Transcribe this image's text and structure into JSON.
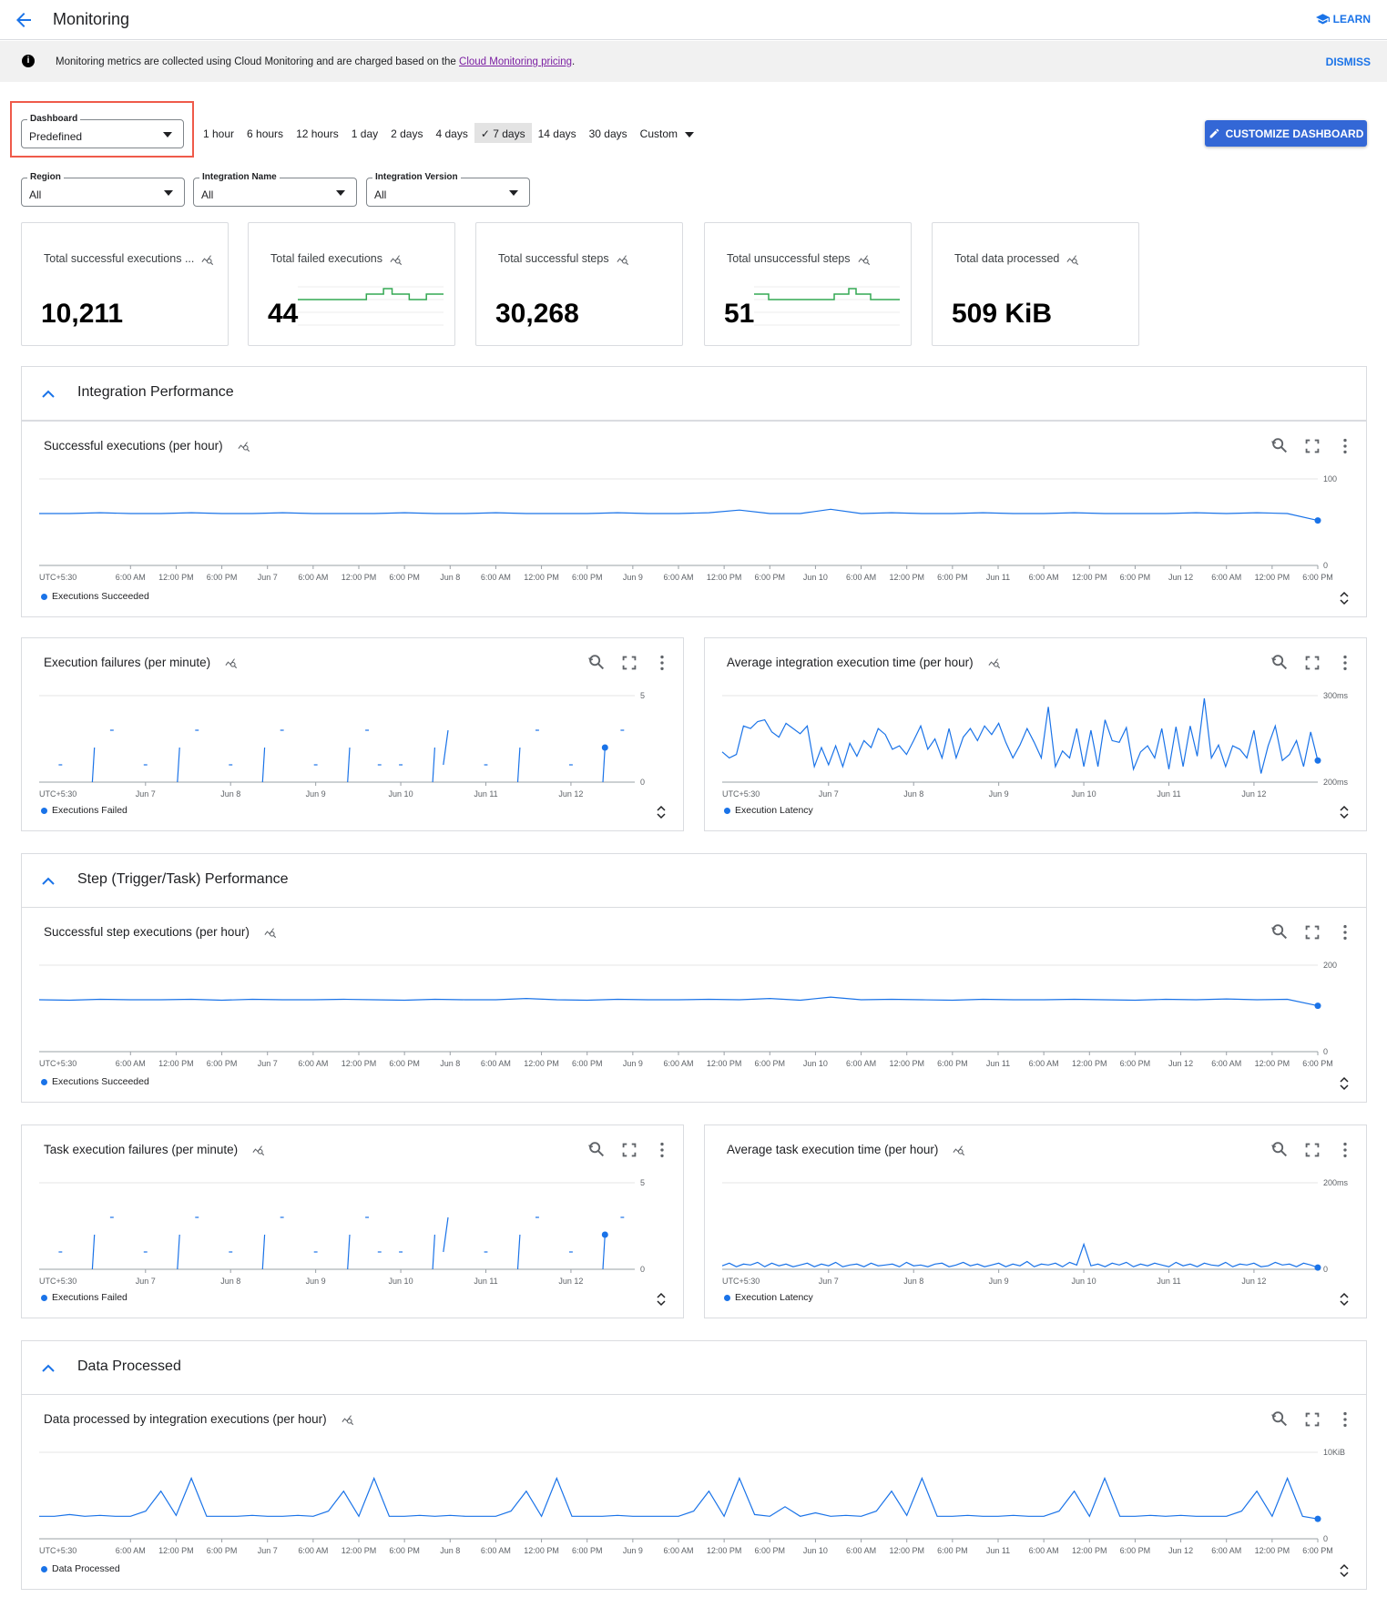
{
  "header": {
    "title": "Monitoring",
    "learn_label": "LEARN"
  },
  "banner": {
    "text": "Monitoring metrics are collected using Cloud Monitoring and are charged based on the ",
    "link": "Cloud Monitoring pricing",
    "suffix": ".",
    "dismiss": "DISMISS"
  },
  "dashboard_select": {
    "label": "Dashboard",
    "value": "Predefined"
  },
  "time_ranges": [
    "1 hour",
    "6 hours",
    "12 hours",
    "1 day",
    "2 days",
    "4 days",
    "7 days",
    "14 days",
    "30 days",
    "Custom"
  ],
  "selected_time_range": "7 days",
  "customize_label": "CUSTOMIZE DASHBOARD",
  "filters": [
    {
      "label": "Region",
      "value": "All"
    },
    {
      "label": "Integration Name",
      "value": "All"
    },
    {
      "label": "Integration Version",
      "value": "All"
    }
  ],
  "kpis": [
    {
      "title": "Total successful executions ...",
      "value": "10,211"
    },
    {
      "title": "Total failed executions",
      "value": "44",
      "spark": [
        0,
        0,
        0,
        0,
        0,
        0,
        0,
        0,
        1,
        1,
        2,
        1,
        1,
        0,
        0,
        1,
        1
      ]
    },
    {
      "title": "Total successful steps",
      "value": "30,268"
    },
    {
      "title": "Total unsuccessful steps",
      "value": "51",
      "spark": [
        1,
        1,
        0,
        0,
        0,
        0,
        0,
        0,
        0,
        0,
        0,
        1,
        1,
        2,
        1,
        1,
        0,
        0,
        0,
        0
      ]
    },
    {
      "title": "Total data processed",
      "value": "509 KiB"
    }
  ],
  "spark_color": "#34a853",
  "accent": "#1a73e8",
  "sections": [
    {
      "title": "Integration Performance"
    },
    {
      "title": "Step (Trigger/Task) Performance"
    },
    {
      "title": "Data Processed"
    }
  ],
  "chart_data": [
    {
      "id": "c1",
      "type": "line",
      "title": "Successful executions (per hour)",
      "legend": "Executions Succeeded",
      "ylim": [
        0,
        100
      ],
      "yticks": [
        "0",
        "100"
      ],
      "x_range": [
        "Jun 5 6:00 PM",
        "Jun 12 6:00 PM"
      ],
      "timezone": "UTC+5:30",
      "xticks": [
        "6:00 AM",
        "12:00 PM",
        "6:00 PM",
        "Jun 7",
        "6:00 AM",
        "12:00 PM",
        "6:00 PM",
        "Jun 8",
        "6:00 AM",
        "12:00 PM",
        "6:00 PM",
        "Jun 9",
        "6:00 AM",
        "12:00 PM",
        "6:00 PM",
        "Jun 10",
        "6:00 AM",
        "12:00 PM",
        "6:00 PM",
        "Jun 11",
        "6:00 AM",
        "12:00 PM",
        "6:00 PM",
        "Jun 12",
        "6:00 AM",
        "12:00 PM",
        "6:00 PM"
      ],
      "values": [
        60,
        60,
        61,
        60,
        60,
        61,
        60,
        60,
        61,
        60,
        60,
        60,
        61,
        60,
        60,
        61,
        60,
        60,
        60,
        61,
        60,
        60,
        61,
        64,
        60,
        60,
        65,
        60,
        61,
        60,
        60,
        61,
        60,
        60,
        61,
        60,
        60,
        60,
        61,
        60,
        61,
        60,
        52
      ]
    },
    {
      "id": "c2",
      "type": "line",
      "title": "Execution failures (per minute)",
      "legend": "Executions Failed",
      "ylim": [
        0,
        5
      ],
      "yticks": [
        "0",
        "5"
      ],
      "x_range": [
        "Jun 5 6:00 PM",
        "Jun 12 6:00 PM"
      ],
      "timezone": "UTC+5:30",
      "xticks": [
        "Jun 7",
        "Jun 8",
        "Jun 9",
        "Jun 10",
        "Jun 11",
        "Jun 12"
      ],
      "segments": [
        [
          [
            "Jun 5 23:30",
            1
          ],
          [
            "Jun 6 00:30",
            1
          ]
        ],
        [
          [
            "Jun 6 09:00",
            0
          ],
          [
            "Jun 6 09:36",
            2
          ]
        ],
        [
          [
            "Jun 6 14:00",
            3
          ],
          [
            "Jun 6 15:00",
            3
          ]
        ],
        [
          [
            "Jun 6 23:30",
            1
          ],
          [
            "Jun 7 00:30",
            1
          ]
        ],
        [
          [
            "Jun 7 09:00",
            0
          ],
          [
            "Jun 7 09:36",
            2
          ]
        ],
        [
          [
            "Jun 7 14:00",
            3
          ],
          [
            "Jun 7 15:00",
            3
          ]
        ],
        [
          [
            "Jun 7 23:30",
            1
          ],
          [
            "Jun 8 00:30",
            1
          ]
        ],
        [
          [
            "Jun 8 09:00",
            0
          ],
          [
            "Jun 8 09:36",
            2
          ]
        ],
        [
          [
            "Jun 8 14:00",
            3
          ],
          [
            "Jun 8 15:00",
            3
          ]
        ],
        [
          [
            "Jun 8 23:30",
            1
          ],
          [
            "Jun 9 00:30",
            1
          ]
        ],
        [
          [
            "Jun 9 09:00",
            0
          ],
          [
            "Jun 9 09:36",
            2
          ]
        ],
        [
          [
            "Jun 9 14:00",
            3
          ],
          [
            "Jun 9 15:00",
            3
          ]
        ],
        [
          [
            "Jun 9 17:30",
            1
          ],
          [
            "Jun 9 18:30",
            1
          ]
        ],
        [
          [
            "Jun 9 23:30",
            1
          ],
          [
            "Jun 10 00:30",
            1
          ]
        ],
        [
          [
            "Jun 10 09:00",
            0
          ],
          [
            "Jun 10 09:36",
            2
          ]
        ],
        [
          [
            "Jun 10 12:00",
            1
          ],
          [
            "Jun 10 13:20",
            3
          ]
        ],
        [
          [
            "Jun 10 23:30",
            1
          ],
          [
            "Jun 11 00:30",
            1
          ]
        ],
        [
          [
            "Jun 11 09:00",
            0
          ],
          [
            "Jun 11 09:36",
            2
          ]
        ],
        [
          [
            "Jun 11 14:00",
            3
          ],
          [
            "Jun 11 15:00",
            3
          ]
        ],
        [
          [
            "Jun 11 23:30",
            1
          ],
          [
            "Jun 12 00:30",
            1
          ]
        ],
        [
          [
            "Jun 12 09:00",
            0
          ],
          [
            "Jun 12 09:36",
            2
          ]
        ],
        [
          [
            "Jun 12 14:00",
            3
          ],
          [
            "Jun 12 15:00",
            3
          ]
        ]
      ],
      "last_point": [
        "Jun 12 09:36",
        2
      ]
    },
    {
      "id": "c3",
      "type": "line",
      "title": "Average integration execution time (per hour)",
      "legend": "Execution Latency",
      "ylim": [
        200,
        300
      ],
      "yticks": [
        "200ms",
        "300ms"
      ],
      "x_range": [
        "Jun 5 6:00 PM",
        "Jun 12 6:00 PM"
      ],
      "timezone": "UTC+5:30",
      "xticks": [
        "Jun 7",
        "Jun 8",
        "Jun 9",
        "Jun 10",
        "Jun 11",
        "Jun 12"
      ],
      "values": [
        235,
        228,
        232,
        265,
        262,
        270,
        272,
        258,
        252,
        268,
        262,
        256,
        265,
        218,
        240,
        220,
        242,
        218,
        245,
        230,
        248,
        240,
        262,
        255,
        238,
        242,
        232,
        248,
        265,
        238,
        250,
        228,
        262,
        228,
        252,
        262,
        248,
        265,
        255,
        268,
        246,
        228,
        243,
        262,
        246,
        228,
        287,
        218,
        236,
        228,
        262,
        218,
        260,
        218,
        272,
        248,
        246,
        263,
        215,
        235,
        242,
        228,
        262,
        215,
        264,
        218,
        265,
        230,
        297,
        228,
        243,
        218,
        242,
        238,
        228,
        260,
        210,
        242,
        265,
        225,
        232,
        248,
        218,
        258,
        225
      ]
    },
    {
      "id": "c4",
      "type": "line",
      "title": "Successful step executions (per hour)",
      "legend": "Executions Succeeded",
      "ylim": [
        0,
        200
      ],
      "yticks": [
        "0",
        "200"
      ],
      "x_range": [
        "Jun 5 6:00 PM",
        "Jun 12 6:00 PM"
      ],
      "timezone": "UTC+5:30",
      "xticks": [
        "6:00 AM",
        "12:00 PM",
        "6:00 PM",
        "Jun 7",
        "6:00 AM",
        "12:00 PM",
        "6:00 PM",
        "Jun 8",
        "6:00 AM",
        "12:00 PM",
        "6:00 PM",
        "Jun 9",
        "6:00 AM",
        "12:00 PM",
        "6:00 PM",
        "Jun 10",
        "6:00 AM",
        "12:00 PM",
        "6:00 PM",
        "Jun 11",
        "6:00 AM",
        "12:00 PM",
        "6:00 PM",
        "Jun 12",
        "6:00 AM",
        "12:00 PM",
        "6:00 PM"
      ],
      "values": [
        120,
        119,
        121,
        120,
        120,
        121,
        119,
        121,
        120,
        120,
        121,
        120,
        119,
        121,
        120,
        120,
        123,
        120,
        119,
        121,
        120,
        120,
        121,
        120,
        123,
        119,
        126,
        120,
        121,
        120,
        119,
        121,
        120,
        120,
        121,
        120,
        119,
        121,
        120,
        122,
        120,
        121,
        106
      ]
    },
    {
      "id": "c5",
      "type": "line",
      "title": "Task execution failures (per minute)",
      "legend": "Executions Failed",
      "ylim": [
        0,
        5
      ],
      "yticks": [
        "0",
        "5"
      ],
      "x_range": [
        "Jun 5 6:00 PM",
        "Jun 12 6:00 PM"
      ],
      "timezone": "UTC+5:30",
      "xticks": [
        "Jun 7",
        "Jun 8",
        "Jun 9",
        "Jun 10",
        "Jun 11",
        "Jun 12"
      ],
      "segments": [
        [
          [
            "Jun 5 23:30",
            1
          ],
          [
            "Jun 6 00:30",
            1
          ]
        ],
        [
          [
            "Jun 6 09:00",
            0
          ],
          [
            "Jun 6 09:36",
            2
          ]
        ],
        [
          [
            "Jun 6 14:00",
            3
          ],
          [
            "Jun 6 15:00",
            3
          ]
        ],
        [
          [
            "Jun 6 23:30",
            1
          ],
          [
            "Jun 7 00:30",
            1
          ]
        ],
        [
          [
            "Jun 7 09:00",
            0
          ],
          [
            "Jun 7 09:36",
            2
          ]
        ],
        [
          [
            "Jun 7 14:00",
            3
          ],
          [
            "Jun 7 15:00",
            3
          ]
        ],
        [
          [
            "Jun 7 23:30",
            1
          ],
          [
            "Jun 8 00:30",
            1
          ]
        ],
        [
          [
            "Jun 8 09:00",
            0
          ],
          [
            "Jun 8 09:36",
            2
          ]
        ],
        [
          [
            "Jun 8 14:00",
            3
          ],
          [
            "Jun 8 15:00",
            3
          ]
        ],
        [
          [
            "Jun 8 23:30",
            1
          ],
          [
            "Jun 9 00:30",
            1
          ]
        ],
        [
          [
            "Jun 9 09:00",
            0
          ],
          [
            "Jun 9 09:36",
            2
          ]
        ],
        [
          [
            "Jun 9 14:00",
            3
          ],
          [
            "Jun 9 15:00",
            3
          ]
        ],
        [
          [
            "Jun 9 17:30",
            1
          ],
          [
            "Jun 9 18:30",
            1
          ]
        ],
        [
          [
            "Jun 9 23:30",
            1
          ],
          [
            "Jun 10 00:30",
            1
          ]
        ],
        [
          [
            "Jun 10 09:00",
            0
          ],
          [
            "Jun 10 09:36",
            2
          ]
        ],
        [
          [
            "Jun 10 12:00",
            1
          ],
          [
            "Jun 10 13:20",
            3
          ]
        ],
        [
          [
            "Jun 10 23:30",
            1
          ],
          [
            "Jun 11 00:30",
            1
          ]
        ],
        [
          [
            "Jun 11 09:00",
            0
          ],
          [
            "Jun 11 09:36",
            2
          ]
        ],
        [
          [
            "Jun 11 14:00",
            3
          ],
          [
            "Jun 11 15:00",
            3
          ]
        ],
        [
          [
            "Jun 11 23:30",
            1
          ],
          [
            "Jun 12 00:30",
            1
          ]
        ],
        [
          [
            "Jun 12 09:00",
            0
          ],
          [
            "Jun 12 09:36",
            2
          ]
        ],
        [
          [
            "Jun 12 14:00",
            3
          ],
          [
            "Jun 12 15:00",
            3
          ]
        ]
      ],
      "last_point": [
        "Jun 12 09:36",
        2
      ]
    },
    {
      "id": "c6",
      "type": "line",
      "title": "Average task execution time (per hour)",
      "legend": "Execution Latency",
      "ylim": [
        0,
        200
      ],
      "yticks": [
        "0",
        "200ms"
      ],
      "x_range": [
        "Jun 5 6:00 PM",
        "Jun 12 6:00 PM"
      ],
      "timezone": "UTC+5:30",
      "xticks": [
        "Jun 7",
        "Jun 8",
        "Jun 9",
        "Jun 10",
        "Jun 11",
        "Jun 12"
      ],
      "values": [
        8,
        14,
        6,
        12,
        10,
        16,
        6,
        14,
        8,
        12,
        6,
        10,
        14,
        6,
        12,
        8,
        16,
        6,
        10,
        12,
        6,
        14,
        8,
        10,
        12,
        6,
        16,
        8,
        10,
        6,
        12,
        14,
        6,
        10,
        16,
        8,
        12,
        6,
        10,
        14,
        6,
        12,
        8,
        18,
        6,
        12,
        10,
        14,
        6,
        16,
        10,
        58,
        8,
        12,
        6,
        14,
        10,
        16,
        6,
        12,
        8,
        14,
        10,
        6,
        16,
        8,
        12,
        6,
        14,
        10,
        8,
        16,
        6,
        12,
        10,
        14,
        6,
        8,
        16,
        10,
        12,
        6,
        14,
        10,
        4
      ]
    },
    {
      "id": "c7",
      "type": "line",
      "title": "Data processed by integration executions (per hour)",
      "legend": "Data Processed",
      "ylim": [
        0,
        10
      ],
      "yticks": [
        "0",
        "10KiB"
      ],
      "x_range": [
        "Jun 5 6:00 PM",
        "Jun 12 6:00 PM"
      ],
      "timezone": "UTC+5:30",
      "xticks": [
        "6:00 AM",
        "12:00 PM",
        "6:00 PM",
        "Jun 7",
        "6:00 AM",
        "12:00 PM",
        "6:00 PM",
        "Jun 8",
        "6:00 AM",
        "12:00 PM",
        "6:00 PM",
        "Jun 9",
        "6:00 AM",
        "12:00 PM",
        "6:00 PM",
        "Jun 10",
        "6:00 AM",
        "12:00 PM",
        "6:00 PM",
        "Jun 11",
        "6:00 AM",
        "12:00 PM",
        "6:00 PM",
        "Jun 12",
        "6:00 AM",
        "12:00 PM",
        "6:00 PM"
      ],
      "values": [
        2.6,
        2.6,
        2.8,
        2.6,
        2.7,
        2.6,
        2.6,
        3.2,
        5.5,
        2.7,
        7.0,
        2.6,
        2.6,
        2.6,
        2.7,
        2.6,
        2.6,
        2.7,
        2.6,
        3.2,
        5.5,
        2.6,
        7.0,
        2.6,
        2.6,
        2.7,
        2.6,
        2.7,
        2.6,
        2.6,
        2.6,
        3.2,
        5.5,
        2.6,
        7.0,
        2.6,
        2.6,
        2.6,
        2.7,
        2.6,
        2.6,
        2.6,
        2.6,
        3.2,
        5.5,
        2.6,
        7.0,
        2.8,
        2.6,
        3.7,
        2.6,
        3.0,
        2.6,
        2.7,
        2.6,
        3.2,
        5.5,
        2.7,
        7.0,
        2.6,
        2.6,
        2.7,
        2.6,
        2.6,
        2.7,
        2.6,
        2.6,
        3.2,
        5.5,
        2.6,
        7.0,
        2.6,
        2.6,
        2.7,
        2.6,
        2.7,
        2.6,
        2.6,
        2.6,
        3.2,
        5.5,
        2.6,
        7.0,
        2.6,
        2.3
      ]
    }
  ]
}
